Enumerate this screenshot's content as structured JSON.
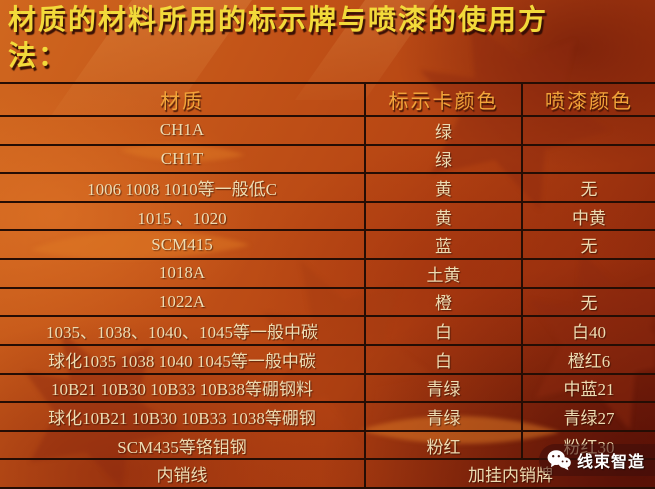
{
  "title": "材质的材料所用的标示牌与喷漆的使用方法：",
  "table": {
    "headers": [
      "材质",
      "标示卡颜色",
      "喷漆颜色"
    ],
    "rows": [
      {
        "material": "CH1A",
        "card_color": "绿",
        "paint_color": ""
      },
      {
        "material": "CH1T",
        "card_color": "绿",
        "paint_color": ""
      },
      {
        "material": "1006 1008 1010等一般低C",
        "card_color": "黄",
        "paint_color": "无"
      },
      {
        "material": "1015 、1020",
        "card_color": "黄",
        "paint_color": "中黄"
      },
      {
        "material": "SCM415",
        "card_color": "蓝",
        "paint_color": "无"
      },
      {
        "material": "1018A",
        "card_color": "土黄",
        "paint_color": ""
      },
      {
        "material": "1022A",
        "card_color": "橙",
        "paint_color": "无"
      },
      {
        "material": "1035、1038、1040、1045等一般中碳",
        "card_color": "白",
        "paint_color": "白40"
      },
      {
        "material": "球化1035 1038 1040 1045等一般中碳",
        "card_color": "白",
        "paint_color": "橙红6"
      },
      {
        "material": "10B21 10B30 10B33 10B38等硼钢料",
        "card_color": "青绿",
        "paint_color": "中蓝21"
      },
      {
        "material": "球化10B21 10B30 10B33 1038等硼钢",
        "card_color": "青绿",
        "paint_color": "青绿27"
      },
      {
        "material": "SCM435等铬钼钢",
        "card_color": "粉红",
        "paint_color": "粉红30"
      },
      {
        "material": "内销线",
        "merged": "加挂内销牌"
      }
    ]
  },
  "watermark": {
    "icon": "wechat-icon",
    "label": "线束智造"
  },
  "colors": {
    "title_text": "#f2da3a",
    "header_text": "#f0a43a",
    "body_text": "#eedcb2",
    "border": "#250d04",
    "background_top": "#d0671f",
    "background_bottom": "#7f1f0a",
    "watermark_bg": "rgba(64,13,10,0.58)",
    "watermark_text": "#ffffff"
  }
}
